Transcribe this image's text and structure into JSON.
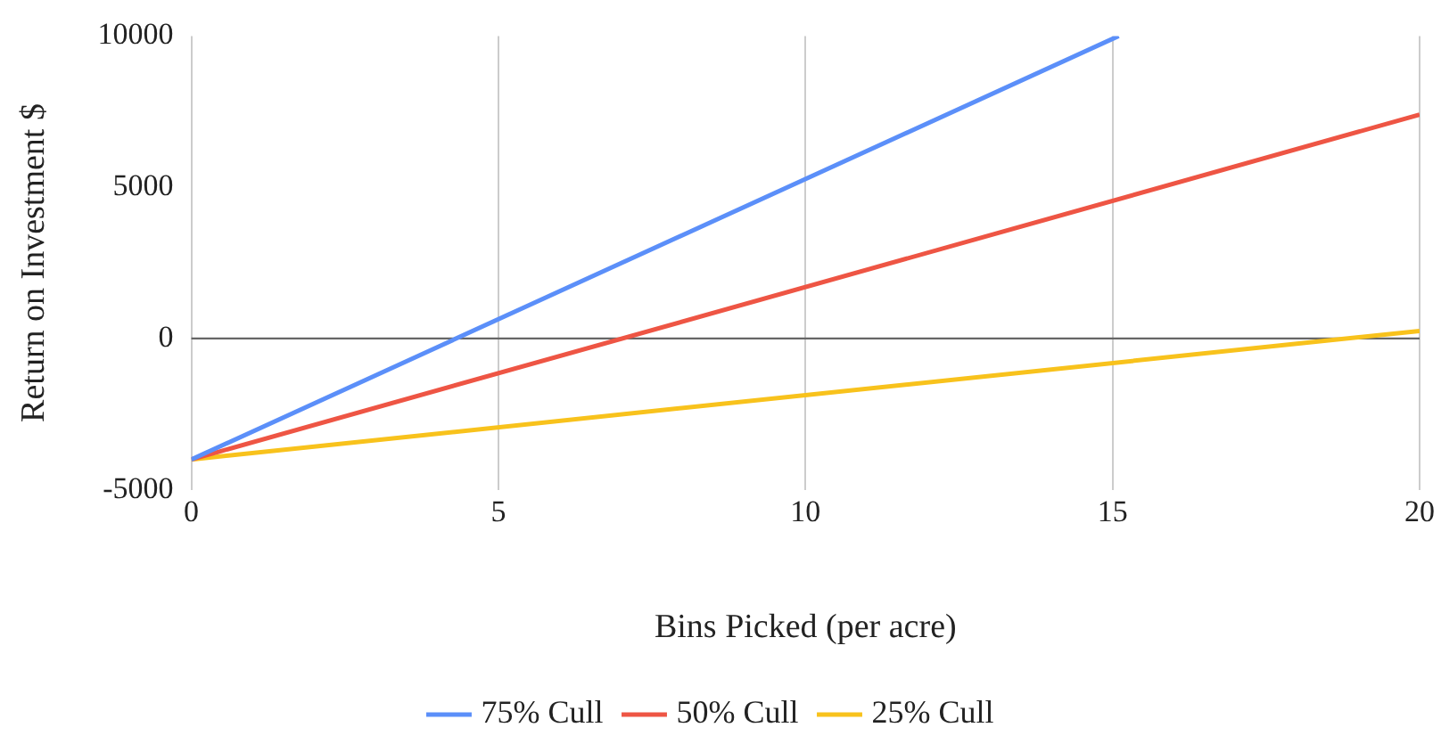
{
  "chart_data": {
    "type": "line",
    "xlabel": "Bins Picked (per acre)",
    "ylabel": "Return on Investment $",
    "series": [
      {
        "name": "75% Cull",
        "color": "#5b8ff9",
        "x": [
          0,
          15.1
        ],
        "values": [
          -4000,
          10000
        ]
      },
      {
        "name": "50% Cull",
        "color": "#ee5544",
        "x": [
          0,
          20
        ],
        "values": [
          -4000,
          7400
        ]
      },
      {
        "name": "25% Cull",
        "color": "#f8c21c",
        "x": [
          0,
          20
        ],
        "values": [
          -4000,
          250
        ]
      }
    ],
    "xlim": [
      0,
      20
    ],
    "xticks": [
      0,
      5,
      10,
      15,
      20
    ],
    "ylim": [
      -5000,
      10000
    ],
    "yticks": [
      -5000,
      0,
      5000,
      10000
    ],
    "grid": "x",
    "legend": "bottom",
    "marker": "none",
    "line_style": "solid",
    "ref_lines": [
      {
        "axis": "y",
        "value": 0,
        "color": "#666666"
      }
    ]
  }
}
